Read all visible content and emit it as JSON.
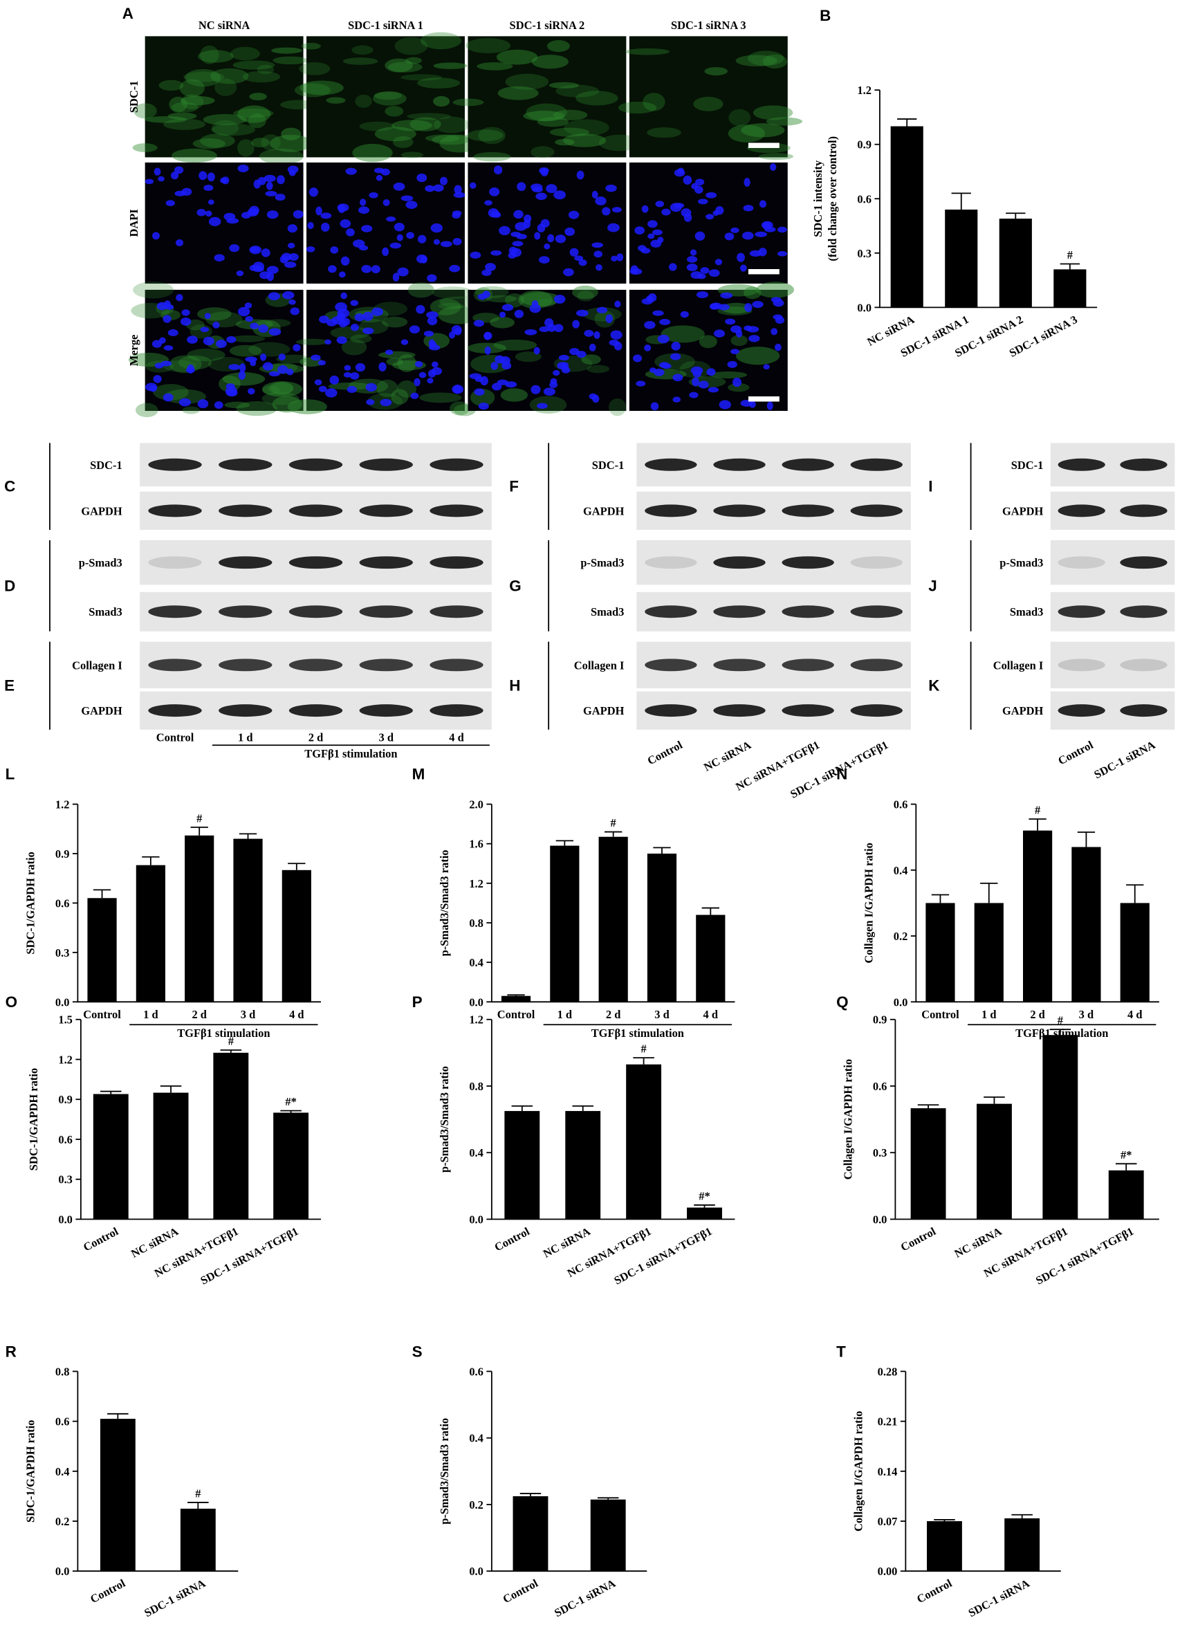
{
  "figure_a": {
    "panel": "A",
    "columns": [
      "NC siRNA",
      "SDC-1 siRNA 1",
      "SDC-1 siRNA 2",
      "SDC-1 siRNA 3"
    ],
    "rows": [
      "SDC-1",
      "DAPI",
      "Merge"
    ]
  },
  "blots": [
    {
      "lanes": [
        "Control",
        "1 d",
        "2 d",
        "3 d",
        "4 d"
      ],
      "group_label": "TGFβ1 stimulation",
      "panels": [
        {
          "panel": "C",
          "rows": [
            "SDC-1",
            "GAPDH"
          ]
        },
        {
          "panel": "D",
          "rows": [
            "p-Smad3",
            "Smad3"
          ]
        },
        {
          "panel": "E",
          "rows": [
            "Collagen I",
            "GAPDH"
          ]
        }
      ]
    },
    {
      "lanes": [
        "Control",
        "NC siRNA",
        "NC siRNA+TGFβ1",
        "SDC-1 siRNA+TGFβ1"
      ],
      "panels": [
        {
          "panel": "F",
          "rows": [
            "SDC-1",
            "GAPDH"
          ]
        },
        {
          "panel": "G",
          "rows": [
            "p-Smad3",
            "Smad3"
          ]
        },
        {
          "panel": "H",
          "rows": [
            "Collagen I",
            "GAPDH"
          ]
        }
      ]
    },
    {
      "lanes": [
        "Control",
        "SDC-1 siRNA"
      ],
      "panels": [
        {
          "panel": "I",
          "rows": [
            "SDC-1",
            "GAPDH"
          ]
        },
        {
          "panel": "J",
          "rows": [
            "p-Smad3",
            "Smad3"
          ]
        },
        {
          "panel": "K",
          "rows": [
            "Collagen I",
            "GAPDH"
          ]
        }
      ]
    }
  ],
  "chart_data": [
    {
      "type": "bar",
      "panel": "B",
      "ylabel": [
        "SDC-1 intensity",
        "(fold change over control)"
      ],
      "color": "#000000",
      "categories": [
        "NC siRNA",
        "SDC-1 siRNA 1",
        "SDC-1 siRNA 2",
        "SDC-1 siRNA 3"
      ],
      "values": [
        1.0,
        0.54,
        0.49,
        0.21
      ],
      "errors": [
        0.04,
        0.09,
        0.03,
        0.03
      ],
      "annotations": [
        null,
        null,
        null,
        "#"
      ],
      "ylim": [
        0,
        1.2
      ],
      "yticks": [
        {
          "value": 0,
          "label": "0.0"
        },
        0.3,
        0.6,
        0.9,
        1.2
      ]
    },
    {
      "type": "bar",
      "panel": "L",
      "ylabel": [
        "SDC-1/GAPDH ratio"
      ],
      "color": "#000000",
      "categories": [
        "Control",
        "1 d",
        "2 d",
        "3 d",
        "4 d"
      ],
      "group_label": "TGFβ1 stimulation",
      "values": [
        0.63,
        0.83,
        1.01,
        0.99,
        0.8
      ],
      "errors": [
        0.05,
        0.05,
        0.05,
        0.03,
        0.04
      ],
      "annotations": [
        null,
        null,
        "#",
        null,
        null
      ],
      "ylim": [
        0,
        1.2
      ],
      "yticks": [
        {
          "value": 0,
          "label": "0.0"
        },
        0.3,
        0.6,
        0.9,
        1.2
      ]
    },
    {
      "type": "bar",
      "panel": "M",
      "ylabel": [
        "p-Smad3/Smad3 ratio"
      ],
      "color": "#000000",
      "categories": [
        "Control",
        "1 d",
        "2 d",
        "3 d",
        "4 d"
      ],
      "group_label": "TGFβ1 stimulation",
      "values": [
        0.06,
        1.58,
        1.67,
        1.5,
        0.88
      ],
      "errors": [
        0.01,
        0.05,
        0.05,
        0.06,
        0.07
      ],
      "annotations": [
        null,
        null,
        "#",
        null,
        null
      ],
      "ylim": [
        0,
        2
      ],
      "yticks": [
        {
          "value": 0,
          "label": "0.0"
        },
        0.4,
        0.8,
        1.2,
        1.6,
        {
          "value": 2,
          "label": "2.0"
        }
      ]
    },
    {
      "type": "bar",
      "panel": "N",
      "ylabel": [
        "Collagen I/GAPDH ratio"
      ],
      "color": "#000000",
      "categories": [
        "Control",
        "1 d",
        "2 d",
        "3 d",
        "4 d"
      ],
      "group_label": "TGFβ1 stimulation",
      "values": [
        0.3,
        0.3,
        0.52,
        0.47,
        0.3
      ],
      "errors": [
        0.025,
        0.06,
        0.035,
        0.045,
        0.055
      ],
      "annotations": [
        null,
        null,
        "#",
        null,
        null
      ],
      "ylim": [
        0,
        0.6
      ],
      "yticks": [
        {
          "value": 0,
          "label": "0.0"
        },
        0.2,
        0.4,
        0.6
      ]
    },
    {
      "type": "bar",
      "panel": "O",
      "ylabel": [
        "SDC-1/GAPDH ratio"
      ],
      "color": "#000000",
      "categories": [
        "Control",
        "NC siRNA",
        "NC siRNA+TGFβ1",
        "SDC-1 siRNA+TGFβ1"
      ],
      "values": [
        0.94,
        0.95,
        1.25,
        0.8
      ],
      "errors": [
        0.02,
        0.05,
        0.02,
        0.015
      ],
      "annotations": [
        null,
        null,
        "#",
        "#*"
      ],
      "ylim": [
        0,
        1.5
      ],
      "yticks": [
        {
          "value": 0,
          "label": "0.0"
        },
        0.3,
        0.6,
        0.9,
        1.2,
        1.5
      ]
    },
    {
      "type": "bar",
      "panel": "P",
      "ylabel": [
        "p-Smad3/Smad3 ratio"
      ],
      "color": "#000000",
      "categories": [
        "Control",
        "NC siRNA",
        "NC siRNA+TGFβ1",
        "SDC-1 siRNA+TGFβ1"
      ],
      "values": [
        0.65,
        0.65,
        0.93,
        0.07
      ],
      "errors": [
        0.03,
        0.03,
        0.04,
        0.015
      ],
      "annotations": [
        null,
        null,
        "#",
        "#*"
      ],
      "ylim": [
        0,
        1.2
      ],
      "yticks": [
        {
          "value": 0,
          "label": "0.0"
        },
        0.4,
        0.8,
        1.2
      ]
    },
    {
      "type": "bar",
      "panel": "Q",
      "ylabel": [
        "Collagen I/GAPDH ratio"
      ],
      "color": "#000000",
      "categories": [
        "Control",
        "NC siRNA",
        "NC siRNA+TGFβ1",
        "SDC-1 siRNA+TGFβ1"
      ],
      "values": [
        0.5,
        0.52,
        0.83,
        0.22
      ],
      "errors": [
        0.015,
        0.03,
        0.025,
        0.03
      ],
      "annotations": [
        null,
        null,
        "#",
        "#*"
      ],
      "ylim": [
        0,
        0.9
      ],
      "yticks": [
        {
          "value": 0,
          "label": "0.0"
        },
        0.3,
        0.6,
        0.9
      ]
    },
    {
      "type": "bar",
      "panel": "R",
      "ylabel": [
        "SDC-1/GAPDH ratio"
      ],
      "color": "#000000",
      "categories": [
        "Control",
        "SDC-1 siRNA"
      ],
      "values": [
        0.61,
        0.25
      ],
      "errors": [
        0.02,
        0.025
      ],
      "annotations": [
        null,
        "#"
      ],
      "ylim": [
        0,
        0.8
      ],
      "yticks": [
        {
          "value": 0,
          "label": "0.0"
        },
        0.2,
        0.4,
        0.6,
        0.8
      ]
    },
    {
      "type": "bar",
      "panel": "S",
      "ylabel": [
        "p-Smad3/Smad3 ratio"
      ],
      "color": "#000000",
      "categories": [
        "Control",
        "SDC-1 siRNA"
      ],
      "values": [
        0.225,
        0.215
      ],
      "errors": [
        0.008,
        0.005
      ],
      "annotations": [
        null,
        null
      ],
      "ylim": [
        0,
        0.6
      ],
      "yticks": [
        {
          "value": 0,
          "label": "0.0"
        },
        0.2,
        0.4,
        0.6
      ]
    },
    {
      "type": "bar",
      "panel": "T",
      "ylabel": [
        "Collagen I/GAPDH ratio"
      ],
      "color": "#000000",
      "categories": [
        "Control",
        "SDC-1 siRNA"
      ],
      "values": [
        0.07,
        0.074
      ],
      "errors": [
        0.002,
        0.005
      ],
      "annotations": [
        null,
        null
      ],
      "ylim": [
        0,
        0.28
      ],
      "yticks": [
        {
          "value": 0,
          "label": "0.00"
        },
        0.07,
        0.14,
        0.21,
        0.28
      ]
    }
  ]
}
